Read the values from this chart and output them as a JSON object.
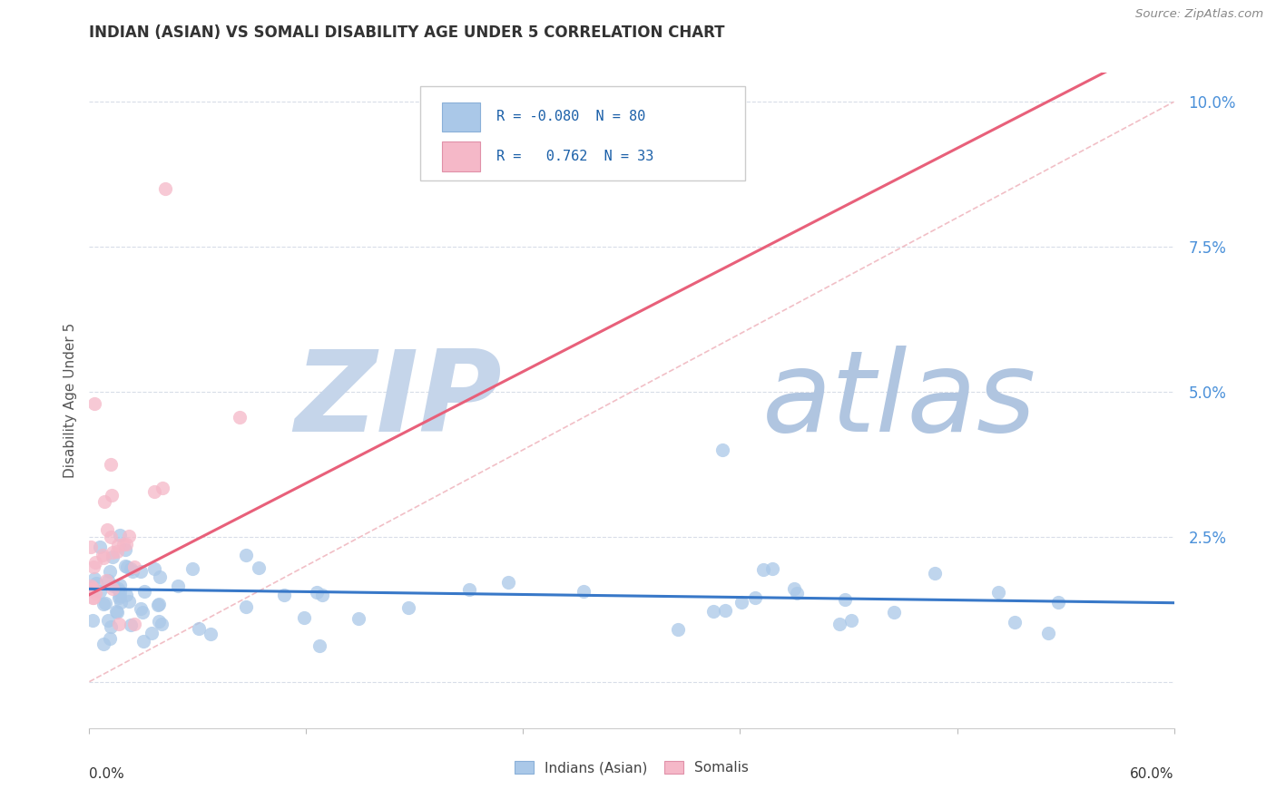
{
  "title": "INDIAN (ASIAN) VS SOMALI DISABILITY AGE UNDER 5 CORRELATION CHART",
  "source": "Source: ZipAtlas.com",
  "ylabel": "Disability Age Under 5",
  "xmin": 0.0,
  "xmax": 0.6,
  "ymin": -0.008,
  "ymax": 0.105,
  "ytick_vals": [
    0.0,
    0.025,
    0.05,
    0.075,
    0.1
  ],
  "ytick_labels": [
    "",
    "2.5%",
    "5.0%",
    "7.5%",
    "10.0%"
  ],
  "indian_R": -0.08,
  "indian_N": 80,
  "somali_R": 0.762,
  "somali_N": 33,
  "indian_color": "#aac8e8",
  "somali_color": "#f5b8c8",
  "indian_line_color": "#3878c8",
  "somali_line_color": "#e8607a",
  "diagonal_color": "#f0b8c0",
  "background_color": "#ffffff",
  "watermark_zip_color": "#c8d8f0",
  "watermark_atlas_color": "#b8c8e0",
  "grid_color": "#d8dde8",
  "tick_color": "#4a90d9",
  "ylabel_color": "#555555",
  "title_color": "#333333",
  "source_color": "#888888",
  "legend_text_color": "#1a5fa8",
  "bottom_legend_color": "#444444"
}
